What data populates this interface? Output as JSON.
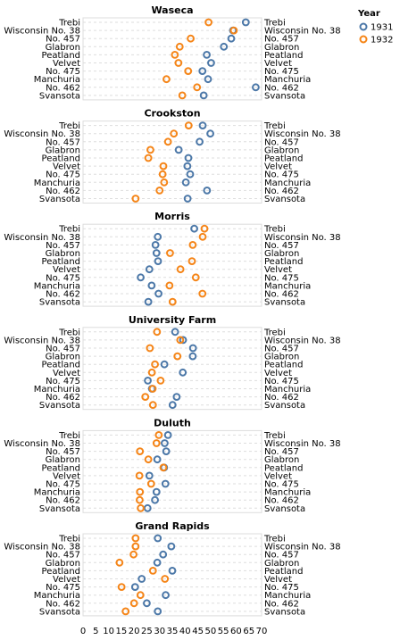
{
  "chart_data": {
    "type": "scatter",
    "facet_field": "site",
    "x_axis": {
      "ticks": [
        0,
        5,
        10,
        15,
        20,
        25,
        30,
        35,
        40,
        45,
        50,
        55,
        60,
        65,
        70
      ],
      "range": [
        0,
        70
      ],
      "grid": false
    },
    "y_grid": "dashed",
    "legend": {
      "title": "Year",
      "placement": "top-right",
      "entries": [
        "1931",
        "1932"
      ]
    },
    "colors": {
      "1931": "#4c78a8",
      "1932": "#f58518"
    },
    "varieties": [
      "Trebi",
      "Wisconsin No. 38",
      "No. 457",
      "Glabron",
      "Peatland",
      "Velvet",
      "No. 475",
      "Manchuria",
      "No. 462",
      "Svansota"
    ],
    "facets": [
      {
        "site": "Waseca",
        "y1931": [
          63.8,
          58.8,
          58.1,
          55.2,
          48.5,
          50.2,
          46.8,
          49.0,
          67.7,
          47.3
        ],
        "y1932": [
          49.2,
          59.1,
          42.2,
          37.9,
          36.0,
          37.4,
          41.2,
          32.7,
          44.7,
          38.9
        ]
      },
      {
        "site": "Crookston",
        "y1931": [
          46.9,
          49.9,
          45.7,
          37.5,
          41.3,
          40.9,
          42.0,
          40.3,
          48.6,
          41.0
        ],
        "y1932": [
          41.4,
          35.6,
          33.3,
          26.4,
          25.6,
          31.5,
          31.2,
          31.8,
          30.0,
          20.6
        ]
      },
      {
        "site": "Morris",
        "y1931": [
          43.6,
          29.3,
          28.4,
          28.8,
          29.4,
          26.0,
          22.6,
          26.9,
          29.6,
          25.6
        ],
        "y1932": [
          47.6,
          46.9,
          43.0,
          34.1,
          42.7,
          38.2,
          44.2,
          33.9,
          46.8,
          35.1
        ]
      },
      {
        "site": "University Farm",
        "y1931": [
          36.1,
          39.2,
          43.1,
          43.0,
          31.9,
          39.1,
          25.4,
          27.0,
          36.7,
          35.1
        ],
        "y1932": [
          29.0,
          38.1,
          26.2,
          37.0,
          28.2,
          27.0,
          30.4,
          27.3,
          24.4,
          27.4
        ]
      },
      {
        "site": "Duluth",
        "y1931": [
          33.3,
          32.0,
          32.6,
          29.1,
          31.8,
          26.0,
          32.3,
          28.8,
          28.2,
          25.3
        ],
        "y1932": [
          29.7,
          28.8,
          22.3,
          25.6,
          31.5,
          22.1,
          26.7,
          22.3,
          22.2,
          22.6
        ]
      },
      {
        "site": "Grand Rapids",
        "y1931": [
          29.3,
          34.6,
          31.4,
          29.1,
          35.0,
          23.0,
          20.4,
          32.4,
          25.0,
          29.3
        ],
        "y1932": [
          20.6,
          20.6,
          19.8,
          14.3,
          27.4,
          32.1,
          15.1,
          22.5,
          20.0,
          16.7
        ]
      }
    ]
  }
}
